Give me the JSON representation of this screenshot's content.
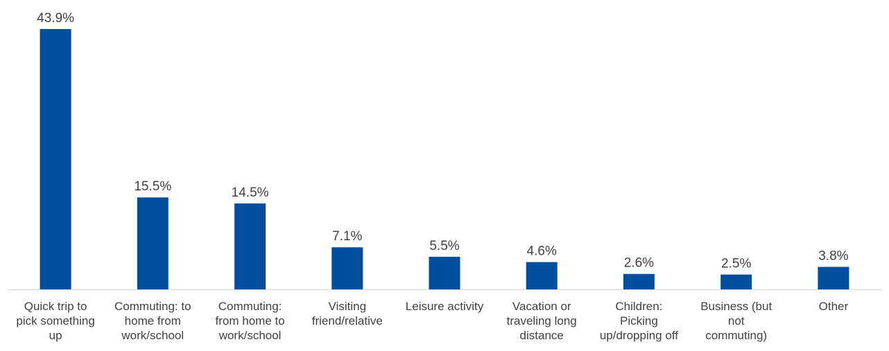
{
  "chart_data": {
    "type": "bar",
    "title": "",
    "xlabel": "",
    "ylabel": "",
    "ylim": [
      0,
      45
    ],
    "grid": false,
    "legend": "none",
    "bar_color": "#004f9e",
    "categories": [
      [
        "Quick trip to",
        "pick something",
        "up"
      ],
      [
        "Commuting: to",
        "home from",
        "work/school"
      ],
      [
        "Commuting:",
        "from home to",
        "work/school"
      ],
      [
        "Visiting",
        "friend/relative"
      ],
      [
        "Leisure activity"
      ],
      [
        "Vacation or",
        "traveling long",
        "distance"
      ],
      [
        "Children:",
        "Picking",
        "up/dropping off"
      ],
      [
        "Business (but",
        "not",
        "commuting)"
      ],
      [
        "Other"
      ]
    ],
    "values": [
      43.9,
      15.5,
      14.5,
      7.1,
      5.5,
      4.6,
      2.6,
      2.5,
      3.8
    ],
    "data_labels": [
      "43.9%",
      "15.5%",
      "14.5%",
      "7.1%",
      "5.5%",
      "4.6%",
      "2.6%",
      "2.5%",
      "3.8%"
    ]
  }
}
